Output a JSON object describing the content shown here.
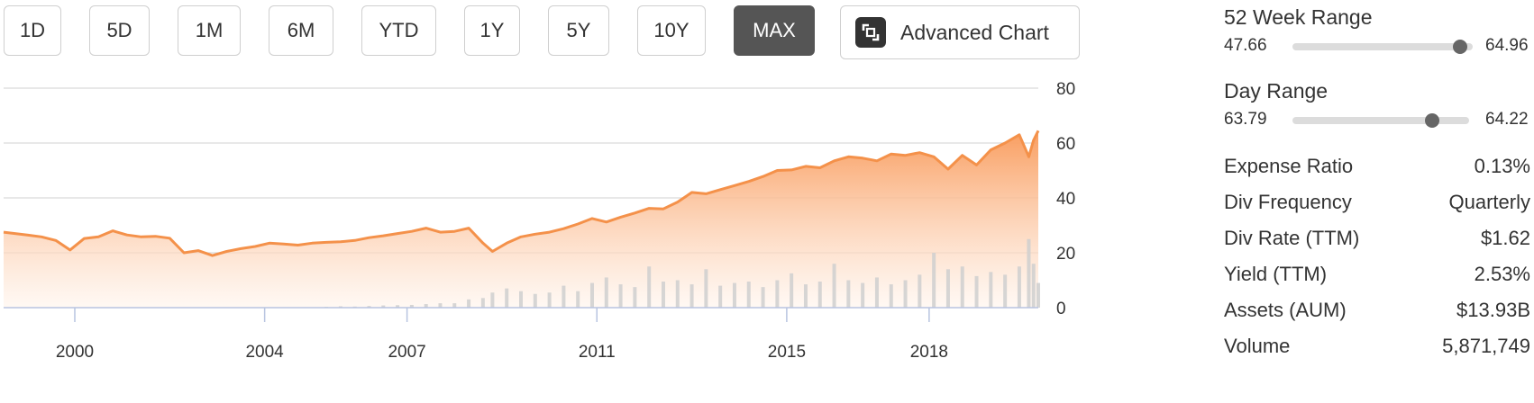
{
  "range_buttons": [
    {
      "label": "1D",
      "active": false
    },
    {
      "label": "5D",
      "active": false
    },
    {
      "label": "1M",
      "active": false
    },
    {
      "label": "6M",
      "active": false
    },
    {
      "label": "YTD",
      "active": false
    },
    {
      "label": "1Y",
      "active": false
    },
    {
      "label": "5Y",
      "active": false
    },
    {
      "label": "10Y",
      "active": false
    },
    {
      "label": "MAX",
      "active": true
    }
  ],
  "advanced_chart_label": "Advanced Chart",
  "colors": {
    "price_line": "#f4914a",
    "area_top": "#f99d5f",
    "area_bottom": "#fff4ec",
    "volume": "#cfcfcf",
    "grid": "#d9d9d9",
    "active_button": "#555555"
  },
  "chart_data": {
    "type": "area",
    "x_tick_labels": [
      "2000",
      "2004",
      "2007",
      "2011",
      "2015",
      "2018"
    ],
    "y_tick_labels": [
      "80",
      "60",
      "40",
      "20",
      "0"
    ],
    "ylim": [
      0,
      80
    ],
    "xlim": [
      1998.5,
      2020.3
    ],
    "grid": true,
    "series": [
      {
        "x": [
          1998.5,
          1999.0,
          1999.3,
          1999.6,
          1999.9,
          2000.2,
          2000.5,
          2000.8,
          2001.1,
          2001.4,
          2001.7,
          2002.0,
          2002.3,
          2002.6,
          2002.9,
          2003.2,
          2003.5,
          2003.8,
          2004.1,
          2004.4,
          2004.7,
          2005.0,
          2005.3,
          2005.6,
          2005.9,
          2006.2,
          2006.5,
          2006.8,
          2007.1,
          2007.4,
          2007.7,
          2008.0,
          2008.3,
          2008.6,
          2008.8,
          2009.1,
          2009.4,
          2009.7,
          2010.0,
          2010.3,
          2010.6,
          2010.9,
          2011.2,
          2011.5,
          2011.8,
          2012.1,
          2012.4,
          2012.7,
          2013.0,
          2013.3,
          2013.6,
          2013.9,
          2014.2,
          2014.5,
          2014.8,
          2015.1,
          2015.4,
          2015.7,
          2016.0,
          2016.3,
          2016.6,
          2016.9,
          2017.2,
          2017.5,
          2017.8,
          2018.1,
          2018.4,
          2018.7,
          2019.0,
          2019.3,
          2019.6,
          2019.9,
          2020.1,
          2020.2,
          2020.3
        ],
        "values": [
          27.5,
          26.5,
          25.8,
          24.5,
          21.0,
          25.2,
          25.8,
          28.0,
          26.5,
          25.8,
          26.0,
          25.3,
          20.0,
          20.8,
          19.0,
          20.5,
          21.5,
          22.3,
          23.5,
          23.2,
          22.8,
          23.5,
          23.8,
          24.0,
          24.5,
          25.5,
          26.2,
          27.0,
          27.8,
          29.0,
          27.5,
          27.8,
          29.0,
          23.5,
          20.5,
          23.5,
          25.8,
          26.8,
          27.5,
          28.8,
          30.5,
          32.5,
          31.2,
          33.0,
          34.5,
          36.2,
          36.0,
          38.5,
          42.0,
          41.5,
          43.0,
          44.5,
          46.0,
          47.8,
          50.0,
          50.2,
          51.5,
          51.0,
          53.5,
          55.0,
          54.5,
          53.5,
          56.0,
          55.5,
          56.5,
          55.0,
          50.5,
          55.5,
          52.0,
          57.5,
          60.0,
          63.0,
          55.0,
          61.0,
          64.5
        ]
      }
    ],
    "volume": {
      "ylim": [
        0,
        80
      ],
      "values": [
        0,
        0,
        0,
        0,
        0,
        0,
        0,
        0,
        0,
        0,
        0,
        0,
        0,
        0,
        0,
        0,
        0,
        0,
        0,
        0,
        0,
        0,
        0.3,
        0.5,
        0.4,
        0.6,
        0.8,
        0.9,
        1.0,
        1.3,
        1.6,
        1.6,
        3.0,
        3.5,
        5.5,
        7.0,
        6.0,
        5.0,
        5.5,
        8.0,
        6.0,
        9.0,
        11.0,
        8.5,
        7.5,
        15.0,
        9.5,
        10.0,
        8.5,
        14.0,
        8.0,
        9.0,
        9.5,
        7.5,
        10.0,
        12.5,
        8.5,
        9.5,
        16.0,
        10.0,
        9.0,
        11.0,
        8.5,
        10.0,
        12.0,
        20.0,
        14.0,
        15.0,
        11.5,
        13.0,
        12.0,
        15.0,
        25.0,
        16.0,
        9.0
      ]
    }
  },
  "stats": {
    "week52": {
      "title": "52 Week Range",
      "low": "47.66",
      "high": "64.96",
      "position": 0.93
    },
    "day": {
      "title": "Day Range",
      "low": "63.79",
      "high": "64.22",
      "position": 0.79
    },
    "rows": [
      {
        "label": "Expense Ratio",
        "value": "0.13%"
      },
      {
        "label": "Div Frequency",
        "value": "Quarterly"
      },
      {
        "label": "Div Rate (TTM)",
        "value": "$1.62"
      },
      {
        "label": "Yield (TTM)",
        "value": "2.53%"
      },
      {
        "label": "Assets (AUM)",
        "value": "$13.93B"
      },
      {
        "label": "Volume",
        "value": "5,871,749"
      }
    ]
  }
}
